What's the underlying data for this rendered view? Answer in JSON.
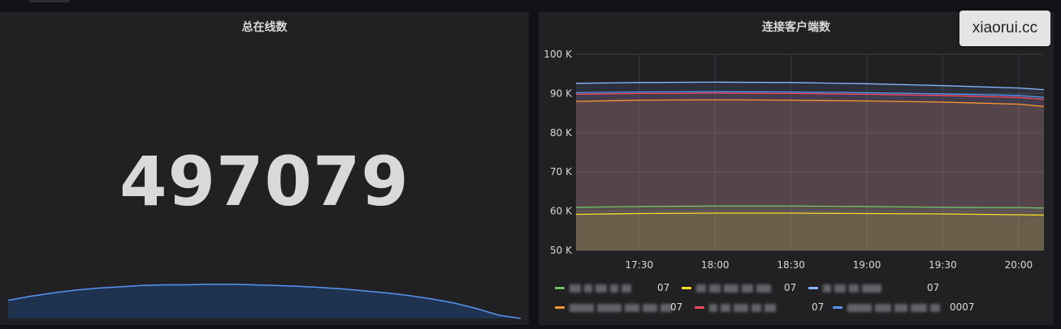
{
  "panels": {
    "total_online": {
      "title": "总在线数",
      "value": "497079",
      "sparkline": {
        "color": "#5794f2",
        "fill": "#1f3350",
        "points": [
          0.27,
          0.33,
          0.38,
          0.42,
          0.45,
          0.47,
          0.49,
          0.5,
          0.5,
          0.51,
          0.51,
          0.5,
          0.49,
          0.48,
          0.46,
          0.44,
          0.41,
          0.38,
          0.34,
          0.29,
          0.23,
          0.15,
          0.05,
          0.0
        ]
      }
    },
    "connected_clients": {
      "title": "连接客户端数"
    }
  },
  "watermark": "xiaorui.cc",
  "chart_data": {
    "type": "area",
    "title": "连接客户端数",
    "y_ticks": [
      "100 K",
      "90 K",
      "80 K",
      "70 K",
      "60 K",
      "50 K"
    ],
    "x_ticks": [
      "17:30",
      "18:00",
      "18:30",
      "19:00",
      "19:30",
      "20:00"
    ],
    "ylim": [
      50000,
      100000
    ],
    "x": [
      "17:05",
      "17:30",
      "18:00",
      "18:30",
      "19:00",
      "19:30",
      "20:00",
      "20:10"
    ],
    "grid": true,
    "legend_position": "bottom",
    "series": [
      {
        "color": "#73bf69",
        "values": [
          61000,
          61200,
          61300,
          61300,
          61200,
          61000,
          60900,
          60800
        ]
      },
      {
        "color": "#fade2a",
        "values": [
          59200,
          59400,
          59500,
          59500,
          59400,
          59300,
          59100,
          59000
        ]
      },
      {
        "color": "#8ab8ff",
        "values": [
          92600,
          92800,
          92900,
          92800,
          92500,
          92000,
          91400,
          91000
        ]
      },
      {
        "color": "#ff9830",
        "values": [
          88000,
          88300,
          88400,
          88300,
          88100,
          87800,
          87300,
          86700
        ]
      },
      {
        "color": "#f2495c",
        "values": [
          89800,
          90000,
          90100,
          90000,
          89800,
          89500,
          89000,
          88500
        ]
      },
      {
        "color": "#5794f2",
        "values": [
          90200,
          90400,
          90500,
          90400,
          90200,
          89900,
          89500,
          89000
        ]
      }
    ],
    "legend": [
      {
        "swatch": "#73bf69",
        "suffix": "07"
      },
      {
        "swatch": "#fade2a",
        "suffix": "07"
      },
      {
        "swatch": "#8ab8ff",
        "suffix": "07"
      },
      {
        "swatch": "#ff9830",
        "suffix": "07"
      },
      {
        "swatch": "#f2495c",
        "suffix": "07"
      },
      {
        "swatch": "#5794f2",
        "suffix": "0007"
      }
    ]
  }
}
